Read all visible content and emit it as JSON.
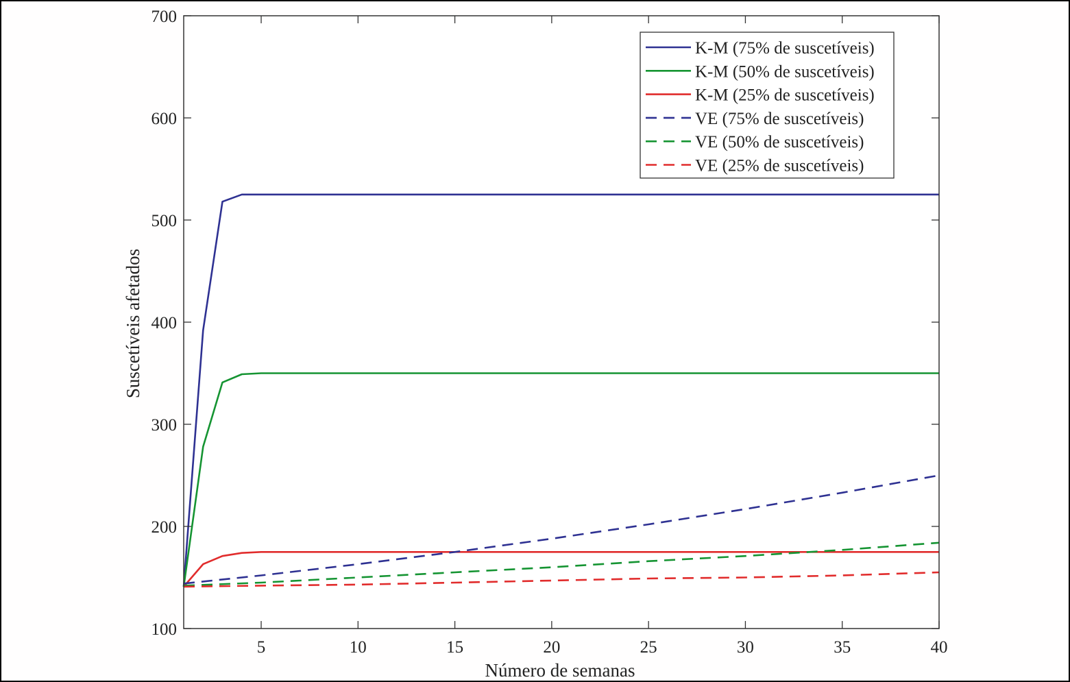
{
  "chart_data": {
    "type": "line",
    "xlabel": "Número de semanas",
    "ylabel": "Suscetíveis afetados",
    "xlim": [
      1,
      40
    ],
    "ylim": [
      100,
      700
    ],
    "xticks": [
      5,
      10,
      15,
      20,
      25,
      30,
      35,
      40
    ],
    "yticks": [
      100,
      200,
      300,
      400,
      500,
      600,
      700
    ],
    "grid": false,
    "legend_position": "top-right",
    "series": [
      {
        "name": "K-M (75% de suscetíveis)",
        "color": "#2e3192",
        "style": "solid",
        "x": [
          1,
          2,
          3,
          4,
          5,
          40
        ],
        "y": [
          141,
          392,
          518,
          525,
          525,
          525
        ]
      },
      {
        "name": "K-M (50% de suscetíveis)",
        "color": "#159432",
        "style": "solid",
        "x": [
          1,
          2,
          3,
          4,
          5,
          40
        ],
        "y": [
          141,
          278,
          341,
          349,
          350,
          350
        ]
      },
      {
        "name": "K-M (25% de suscetíveis)",
        "color": "#e12c2c",
        "style": "solid",
        "x": [
          1,
          2,
          3,
          4,
          5,
          40
        ],
        "y": [
          141,
          163,
          171,
          174,
          175,
          175
        ]
      },
      {
        "name": "VE (75% de suscetíveis)",
        "color": "#2e3192",
        "style": "dashed",
        "x": [
          1,
          5,
          10,
          15,
          20,
          25,
          30,
          35,
          40
        ],
        "y": [
          144,
          152,
          163,
          175,
          188,
          202,
          217,
          233,
          250
        ]
      },
      {
        "name": "VE (50% de suscetíveis)",
        "color": "#159432",
        "style": "dashed",
        "x": [
          1,
          5,
          10,
          15,
          20,
          25,
          30,
          35,
          40
        ],
        "y": [
          142,
          145,
          150,
          155,
          160,
          166,
          171,
          177,
          184
        ]
      },
      {
        "name": "VE (25% de suscetíveis)",
        "color": "#e12c2c",
        "style": "dashed",
        "x": [
          1,
          5,
          10,
          15,
          20,
          25,
          30,
          35,
          40
        ],
        "y": [
          141,
          142,
          143,
          145,
          147,
          149,
          150,
          152,
          155
        ]
      }
    ]
  }
}
